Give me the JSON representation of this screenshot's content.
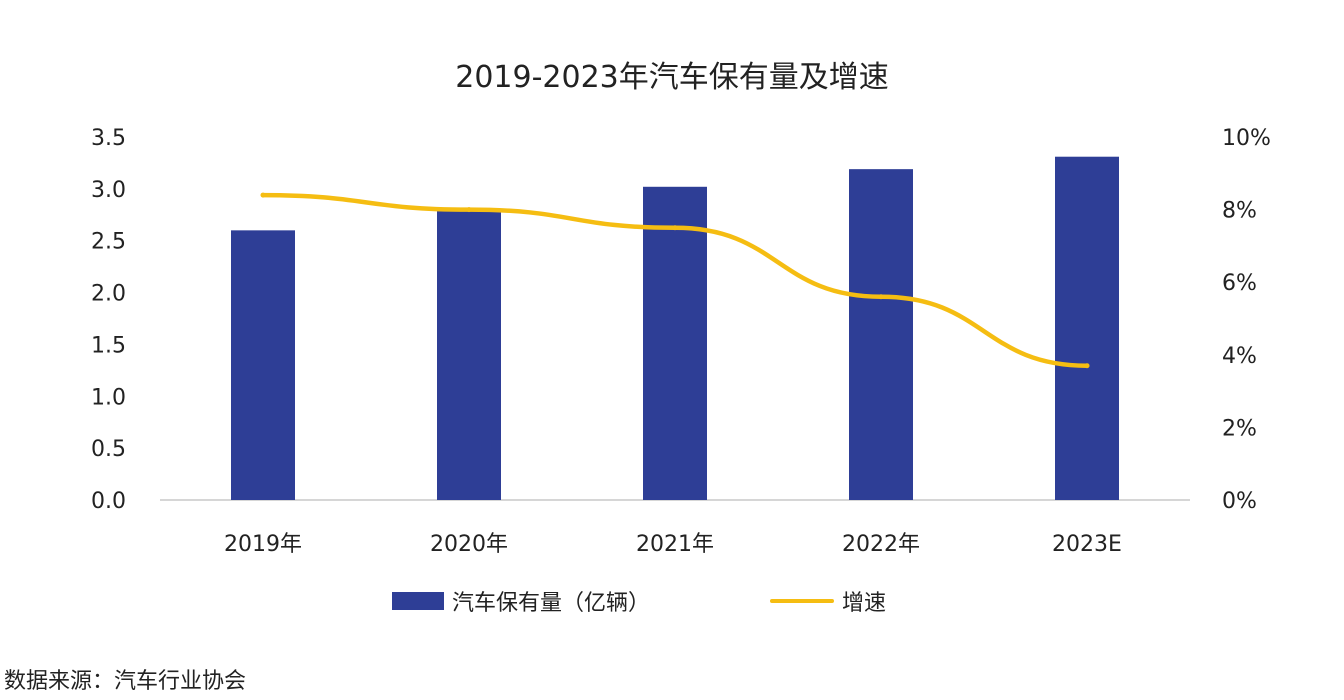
{
  "chart_data": {
    "type": "bar+line",
    "title": "2019-2023年汽车保有量及增速",
    "categories": [
      "2019年",
      "2020年",
      "2021年",
      "2022年",
      "2023E"
    ],
    "series": [
      {
        "name": "汽车保有量（亿辆）",
        "type": "bar",
        "axis": "left",
        "values": [
          2.6,
          2.81,
          3.02,
          3.19,
          3.31
        ]
      },
      {
        "name": "增速",
        "type": "line",
        "axis": "right",
        "values": [
          8.4,
          8.0,
          7.5,
          5.6,
          3.7
        ]
      }
    ],
    "y_left": {
      "min": 0,
      "max": 3.5,
      "ticks": [
        "0.0",
        "0.5",
        "1.0",
        "1.5",
        "2.0",
        "2.5",
        "3.0",
        "3.5"
      ]
    },
    "y_right": {
      "min": 0,
      "max": 10,
      "ticks": [
        "0%",
        "2%",
        "4%",
        "6%",
        "8%",
        "10%"
      ]
    },
    "colors": {
      "bar": "#2e3e96",
      "line": "#f5bd12",
      "axis": "#c8c8c8"
    },
    "legend_position": "bottom"
  },
  "source_text": "数据来源：汽车行业协会"
}
